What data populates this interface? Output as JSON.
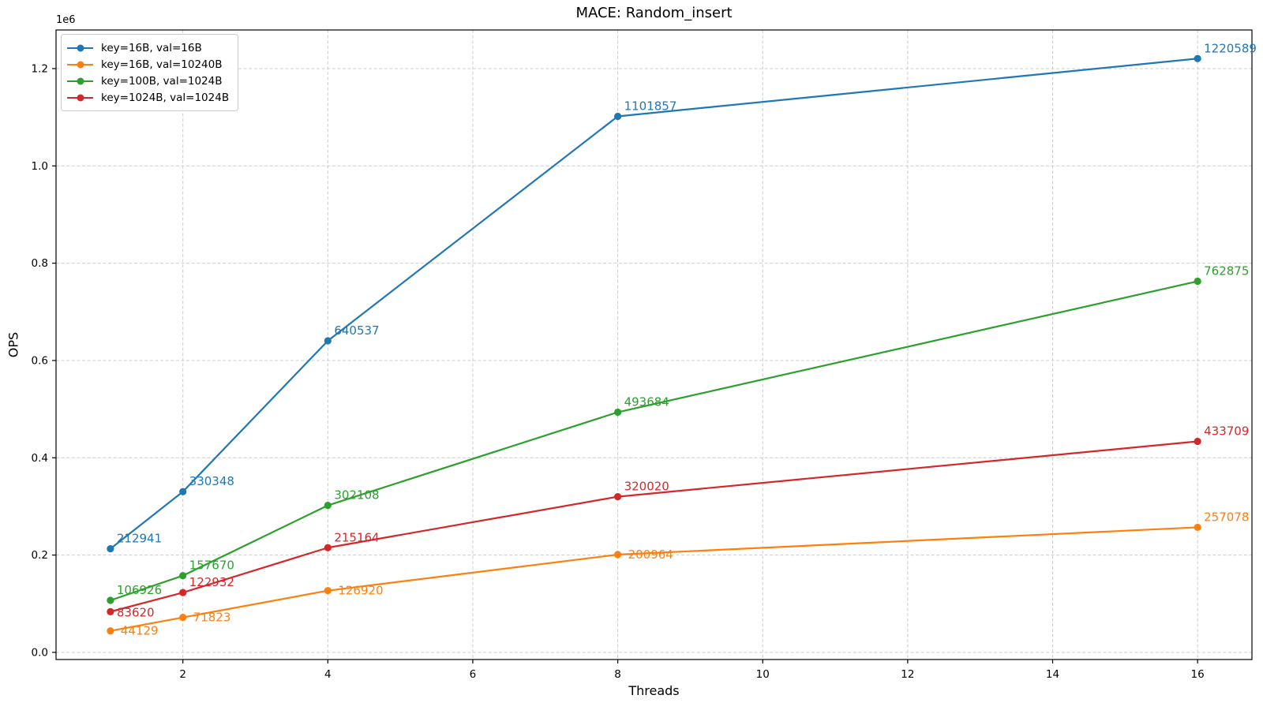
{
  "title": "MACE: Random_insert",
  "chart_data": {
    "type": "line",
    "title": "MACE: Random_insert",
    "xlabel": "Threads",
    "ylabel": "OPS",
    "offset_text": "1e6",
    "grid": true,
    "legend_position": "upper-left",
    "x": [
      1,
      2,
      4,
      8,
      16
    ],
    "series": [
      {
        "name": "key=16B, val=16B",
        "color": "#1f77b4",
        "values": [
          212941,
          330348,
          640537,
          1101857,
          1220589
        ]
      },
      {
        "name": "key=16B, val=10240B",
        "color": "#ff7f0e",
        "values": [
          44129,
          71823,
          126920,
          200964,
          257078
        ]
      },
      {
        "name": "key=100B, val=1024B",
        "color": "#2ca02c",
        "values": [
          106926,
          157670,
          302108,
          493684,
          762875
        ]
      },
      {
        "name": "key=1024B, val=1024B",
        "color": "#d62728",
        "values": [
          83620,
          122932,
          215164,
          320020,
          433709
        ]
      }
    ],
    "xlim": [
      0.25,
      16.75
    ],
    "ylim": [
      -14694,
      1279412
    ],
    "x_ticks": [
      2,
      4,
      6,
      8,
      10,
      12,
      14,
      16
    ],
    "y_ticks": [
      0,
      200000,
      400000,
      600000,
      800000,
      1000000,
      1200000
    ],
    "y_tick_labels": [
      "0.0",
      "0.2",
      "0.4",
      "0.6",
      "0.8",
      "1.0",
      "1.2"
    ],
    "point_labels_shown": true
  }
}
